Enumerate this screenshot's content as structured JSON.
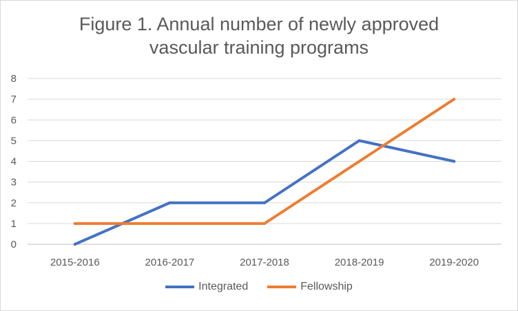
{
  "chart_data": {
    "type": "line",
    "title_lines": [
      "Figure 1. Annual number of newly approved",
      "vascular training programs"
    ],
    "categories": [
      "2015-2016",
      "2016-2017",
      "2017-2018",
      "2018-2019",
      "2019-2020"
    ],
    "series": [
      {
        "name": "Integrated",
        "color": "#4472c4",
        "values": [
          0,
          2,
          2,
          5,
          4
        ]
      },
      {
        "name": "Fellowship",
        "color": "#ed7d31",
        "values": [
          1,
          1,
          1,
          4,
          7
        ]
      }
    ],
    "y_ticks": [
      "0",
      "1",
      "2",
      "3",
      "4",
      "5",
      "6",
      "7",
      "8"
    ],
    "ylim": [
      0,
      8
    ],
    "xlabel": "",
    "ylabel": "",
    "grid": true,
    "legend_position": "bottom"
  }
}
